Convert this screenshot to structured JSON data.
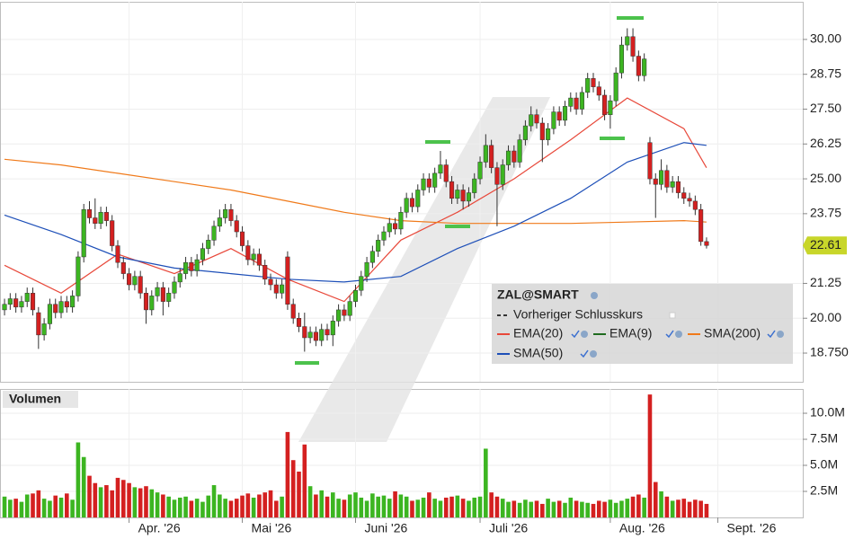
{
  "chart_data": {
    "type": "candlestick",
    "title": "ZAL@SMART",
    "up_color": "#3cb521",
    "down_color": "#d42020",
    "open": [
      20.3,
      20.5,
      20.7,
      20.4,
      20.6,
      20.9,
      20.2,
      19.4,
      19.8,
      20.5,
      20.2,
      20.6,
      20.4,
      20.8,
      22.2,
      23.9,
      23.6,
      23.4,
      23.8,
      23.5,
      22.6,
      22.0,
      21.6,
      21.2,
      21.5,
      20.9,
      20.3,
      20.8,
      21.1,
      20.6,
      20.9,
      21.3,
      21.6,
      22.0,
      21.7,
      22.1,
      22.5,
      22.8,
      23.3,
      23.6,
      23.9,
      23.5,
      23.1,
      22.6,
      22.1,
      22.3,
      21.9,
      21.4,
      21.2,
      20.9,
      22.2,
      20.5,
      20.0,
      19.7,
      19.3,
      19.5,
      19.2,
      19.6,
      19.4,
      19.9,
      20.3,
      20.1,
      20.6,
      21.0,
      21.5,
      22.0,
      22.4,
      22.8,
      23.1,
      23.4,
      23.2,
      23.8,
      24.3,
      24.0,
      24.6,
      25.0,
      24.7,
      25.2,
      25.5,
      24.9,
      24.3,
      24.6,
      24.2,
      24.5,
      25.0,
      25.6,
      26.2,
      25.4,
      24.8,
      25.5,
      26.0,
      25.6,
      26.4,
      26.9,
      27.3,
      27.0,
      26.4,
      26.8,
      27.4,
      27.1,
      27.6,
      27.9,
      27.5,
      28.1,
      28.6,
      28.3,
      28.0,
      27.3,
      27.8,
      28.8,
      29.8,
      30.1,
      29.4,
      28.7,
      26.3,
      25.0,
      24.8,
      25.3,
      24.7,
      24.9,
      24.5,
      24.3,
      24.2,
      23.9,
      22.75
    ],
    "high": [
      20.7,
      20.9,
      20.9,
      20.8,
      21.1,
      21.1,
      20.4,
      20.0,
      20.7,
      20.7,
      20.8,
      20.8,
      21.0,
      22.4,
      24.1,
      24.2,
      24.3,
      24.0,
      24.0,
      23.7,
      22.8,
      22.2,
      21.8,
      21.7,
      21.7,
      21.1,
      21.0,
      21.3,
      21.3,
      21.1,
      21.5,
      21.8,
      22.2,
      22.2,
      22.3,
      22.7,
      23.0,
      23.5,
      23.9,
      24.1,
      24.1,
      23.7,
      23.3,
      22.8,
      22.5,
      22.5,
      22.1,
      21.6,
      21.4,
      21.4,
      22.4,
      20.7,
      20.2,
      20.2,
      19.7,
      19.7,
      19.8,
      19.8,
      20.1,
      20.5,
      20.5,
      20.8,
      21.2,
      21.7,
      22.2,
      22.6,
      23.0,
      23.3,
      23.6,
      23.6,
      24.0,
      24.5,
      24.5,
      24.8,
      25.2,
      25.2,
      25.4,
      26.0,
      25.7,
      25.1,
      24.8,
      24.8,
      24.7,
      25.2,
      25.8,
      26.6,
      26.4,
      25.6,
      25.7,
      26.2,
      26.2,
      26.6,
      27.1,
      27.6,
      27.5,
      27.2,
      27.0,
      27.6,
      27.6,
      27.8,
      28.1,
      28.1,
      28.3,
      28.8,
      28.8,
      28.5,
      28.2,
      28.0,
      29.0,
      30.1,
      30.4,
      30.4,
      29.6,
      29.5,
      26.5,
      25.2,
      25.7,
      25.5,
      25.1,
      25.1,
      24.7,
      24.5,
      24.4,
      24.1,
      22.9
    ],
    "low": [
      20.1,
      20.3,
      20.2,
      20.2,
      20.4,
      20.1,
      18.9,
      19.2,
      19.6,
      20.0,
      20.0,
      20.2,
      20.2,
      20.6,
      22.0,
      23.4,
      23.2,
      23.2,
      23.3,
      22.4,
      21.8,
      21.4,
      21.0,
      21.0,
      20.7,
      19.8,
      20.1,
      20.6,
      20.1,
      20.4,
      20.7,
      21.1,
      21.4,
      21.5,
      21.5,
      21.9,
      22.3,
      22.6,
      23.1,
      23.4,
      23.3,
      22.9,
      22.4,
      21.9,
      21.9,
      21.7,
      21.2,
      21.0,
      20.7,
      20.7,
      20.3,
      19.8,
      19.5,
      18.8,
      19.1,
      19.0,
      19.0,
      19.2,
      19.0,
      19.7,
      19.9,
      19.9,
      20.4,
      20.8,
      21.3,
      21.8,
      22.2,
      22.6,
      22.9,
      23.0,
      23.0,
      23.6,
      23.8,
      23.8,
      24.4,
      24.5,
      24.5,
      25.0,
      24.7,
      24.1,
      24.1,
      23.9,
      24.0,
      24.3,
      24.8,
      25.4,
      25.2,
      23.3,
      24.6,
      25.3,
      25.4,
      25.4,
      26.2,
      26.7,
      26.8,
      25.6,
      26.2,
      26.6,
      26.9,
      26.9,
      27.4,
      27.3,
      27.3,
      27.9,
      28.1,
      27.8,
      27.1,
      26.8,
      27.6,
      28.6,
      29.6,
      29.2,
      28.5,
      28.5,
      24.8,
      23.6,
      24.6,
      24.5,
      24.5,
      24.3,
      24.1,
      24.0,
      23.7,
      22.6,
      22.5
    ],
    "close": [
      20.5,
      20.7,
      20.4,
      20.6,
      20.9,
      20.3,
      19.4,
      19.8,
      20.5,
      20.2,
      20.6,
      20.4,
      20.8,
      22.2,
      23.9,
      23.6,
      23.4,
      23.8,
      23.5,
      22.6,
      22.0,
      21.6,
      21.2,
      21.5,
      20.9,
      20.3,
      20.8,
      21.1,
      20.6,
      20.9,
      21.3,
      21.6,
      22.0,
      21.7,
      22.1,
      22.5,
      22.8,
      23.3,
      23.6,
      23.9,
      23.5,
      23.1,
      22.6,
      22.1,
      22.3,
      21.9,
      21.4,
      21.2,
      20.9,
      21.2,
      20.5,
      20.0,
      19.7,
      19.3,
      19.5,
      19.2,
      19.6,
      19.4,
      19.9,
      20.3,
      20.1,
      20.6,
      21.0,
      21.5,
      22.0,
      22.4,
      22.8,
      23.1,
      23.4,
      23.2,
      23.8,
      24.3,
      24.0,
      24.6,
      25.0,
      24.7,
      25.2,
      25.5,
      24.9,
      24.3,
      24.6,
      24.2,
      24.5,
      25.0,
      25.6,
      26.2,
      25.4,
      24.8,
      25.5,
      26.0,
      25.6,
      26.4,
      26.9,
      27.3,
      27.0,
      26.4,
      26.8,
      27.4,
      27.1,
      27.6,
      27.9,
      27.5,
      28.1,
      28.6,
      28.3,
      28.0,
      27.3,
      27.8,
      28.8,
      29.8,
      30.1,
      29.4,
      28.7,
      29.3,
      25.0,
      24.8,
      25.3,
      24.7,
      24.9,
      24.5,
      24.3,
      24.2,
      23.9,
      22.75,
      22.61
    ],
    "overlays": [
      {
        "name": "Vorheriger Schlusskurs",
        "color": "#333333",
        "dash": true
      },
      {
        "name": "EMA(20)",
        "color": "#e8483a",
        "x": [
          0,
          10,
          20,
          30,
          40,
          50,
          60,
          70,
          80,
          90,
          100,
          110,
          120,
          124
        ],
        "values": [
          21.9,
          20.9,
          22.3,
          21.6,
          22.5,
          21.4,
          20.6,
          22.8,
          23.8,
          25.0,
          26.4,
          27.9,
          26.8,
          25.4
        ]
      },
      {
        "name": "EMA(9)",
        "color": "#1f6b1f"
      },
      {
        "name": "SMA(200)",
        "color": "#f07a1a",
        "x": [
          0,
          10,
          20,
          30,
          40,
          50,
          60,
          70,
          80,
          90,
          100,
          110,
          120,
          124
        ],
        "values": [
          25.7,
          25.5,
          25.2,
          24.9,
          24.6,
          24.2,
          23.8,
          23.5,
          23.4,
          23.4,
          23.4,
          23.45,
          23.5,
          23.45
        ]
      },
      {
        "name": "SMA(50)",
        "color": "#1d4fb8",
        "x": [
          0,
          10,
          20,
          30,
          40,
          50,
          60,
          70,
          80,
          90,
          100,
          110,
          120,
          124
        ],
        "values": [
          23.7,
          23.0,
          22.2,
          21.8,
          21.6,
          21.4,
          21.3,
          21.5,
          22.5,
          23.3,
          24.3,
          25.6,
          26.3,
          26.2
        ]
      }
    ],
    "xlim": [
      -0.8,
      141
    ],
    "xticks": [
      {
        "value": 22,
        "label": "Apr. '26"
      },
      {
        "value": 42,
        "label": "Mai '26"
      },
      {
        "value": 62,
        "label": "Juni '26"
      },
      {
        "value": 84,
        "label": "Juli '26"
      },
      {
        "value": 107,
        "label": "Aug. '26"
      },
      {
        "value": 126,
        "label": "Sept. '26"
      }
    ],
    "ylim": [
      17.72,
      31.35
    ],
    "yticks": [
      {
        "value": 18.75,
        "label": "18.750"
      },
      {
        "value": 20,
        "label": "20.00"
      },
      21.25,
      23.75,
      {
        "value": 25,
        "label": "25.00"
      },
      26.25,
      {
        "value": 27.5,
        "label": "27.50"
      },
      28.75,
      {
        "value": 30,
        "label": "30.00"
      }
    ],
    "grid": true,
    "volume_label": "Volumen",
    "volume": [
      2.0,
      1.7,
      1.8,
      1.5,
      2.2,
      2.3,
      2.6,
      1.8,
      1.6,
      2.1,
      1.9,
      2.3,
      1.7,
      7.2,
      5.8,
      4.0,
      3.3,
      2.9,
      3.1,
      2.6,
      3.8,
      3.6,
      3.3,
      2.9,
      2.8,
      3.0,
      2.7,
      2.4,
      2.2,
      2.0,
      1.7,
      1.9,
      2.0,
      1.6,
      1.8,
      1.5,
      2.1,
      3.1,
      2.2,
      1.8,
      1.6,
      1.8,
      2.1,
      2.3,
      1.9,
      2.2,
      2.4,
      2.6,
      1.6,
      2.0,
      8.2,
      5.5,
      4.4,
      7.0,
      3.0,
      2.2,
      2.6,
      2.0,
      2.4,
      1.8,
      1.7,
      2.2,
      2.4,
      1.9,
      1.6,
      2.3,
      2.0,
      2.1,
      1.8,
      2.5,
      2.2,
      2.0,
      1.6,
      1.7,
      1.9,
      2.4,
      1.8,
      1.6,
      1.9,
      2.0,
      2.1,
      1.8,
      1.6,
      1.9,
      2.0,
      6.6,
      2.4,
      2.0,
      1.8,
      1.5,
      1.6,
      1.4,
      1.7,
      1.5,
      1.6,
      1.3,
      1.8,
      1.5,
      1.6,
      1.4,
      1.9,
      1.6,
      1.5,
      1.4,
      1.3,
      1.6,
      1.5,
      1.7,
      1.4,
      1.6,
      1.8,
      2.0,
      2.2,
      1.9,
      11.8,
      3.4,
      2.5,
      2.0,
      1.6,
      1.7,
      1.8,
      1.5,
      1.7,
      1.6,
      1.3
    ],
    "volume_ylim": [
      0,
      12.33
    ],
    "volume_yticks": [
      {
        "value": 2.5,
        "label": "2.5M"
      },
      {
        "value": 5,
        "label": "5.0M"
      },
      {
        "value": 7.5,
        "label": "7.5M"
      },
      {
        "value": 10,
        "label": "10.0M"
      }
    ]
  }
}
